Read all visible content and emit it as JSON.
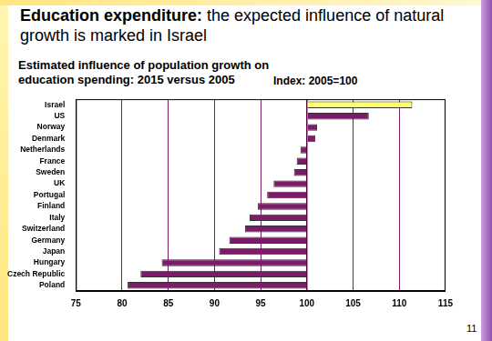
{
  "chart_data": {
    "type": "bar",
    "title": "Education expenditure: the expected influence of natural growth is marked in Israel",
    "subtitle": "Estimated influence of population growth on education spending: 2015 versus 2005",
    "annotations": [
      "Index: 2005=100",
      "11"
    ],
    "orientation": "horizontal",
    "categories": [
      "Israel",
      "US",
      "Norway",
      "Denmark",
      "Netherlands",
      "France",
      "Sweden",
      "UK",
      "Portugal",
      "Finland",
      "Italy",
      "Switzerland",
      "Germany",
      "Japan",
      "Hungary",
      "Czech Republic",
      "Poland"
    ],
    "values": [
      111.4,
      106.7,
      101.1,
      100.9,
      99.3,
      98.9,
      98.6,
      96.4,
      95.7,
      94.7,
      93.8,
      93.3,
      91.6,
      90.5,
      84.3,
      82.0,
      80.6
    ],
    "baseline": 100,
    "colors": [
      "#ffff66",
      "#7d1a6a",
      "#7d1a6a",
      "#7d1a6a",
      "#7d1a6a",
      "#7d1a6a",
      "#7d1a6a",
      "#7d1a6a",
      "#7d1a6a",
      "#7d1a6a",
      "#7d1a6a",
      "#7d1a6a",
      "#7d1a6a",
      "#7d1a6a",
      "#7d1a6a",
      "#7d1a6a",
      "#7d1a6a"
    ],
    "xlim": [
      75,
      115
    ],
    "xticks": [
      75,
      80,
      85,
      90,
      95,
      100,
      105,
      110,
      115
    ],
    "grid": true
  }
}
